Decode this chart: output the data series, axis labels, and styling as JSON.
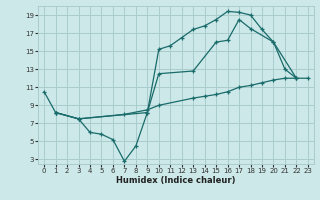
{
  "xlabel": "Humidex (Indice chaleur)",
  "bg_color": "#cce8e8",
  "grid_color": "#aacccc",
  "line_color": "#1a6b6b",
  "xlim": [
    -0.5,
    23.5
  ],
  "ylim": [
    2.5,
    20.0
  ],
  "xticks": [
    0,
    1,
    2,
    3,
    4,
    5,
    6,
    7,
    8,
    9,
    10,
    11,
    12,
    13,
    14,
    15,
    16,
    17,
    18,
    19,
    20,
    21,
    22,
    23
  ],
  "yticks": [
    3,
    5,
    7,
    9,
    11,
    13,
    15,
    17,
    19
  ],
  "line1_x": [
    0,
    1,
    3,
    4,
    5,
    6,
    7,
    8,
    9,
    10,
    11,
    12,
    13,
    14,
    15,
    16,
    17,
    18,
    19,
    20,
    21,
    22
  ],
  "line1_y": [
    10.5,
    8.2,
    7.5,
    6.0,
    5.8,
    5.2,
    2.8,
    4.5,
    8.2,
    15.2,
    15.6,
    16.5,
    17.4,
    17.8,
    18.5,
    19.4,
    19.3,
    19.0,
    17.4,
    16.0,
    13.0,
    12.0
  ],
  "line2_x": [
    1,
    3,
    9,
    10,
    13,
    15,
    16,
    17,
    18,
    20,
    22
  ],
  "line2_y": [
    8.2,
    7.5,
    8.2,
    12.5,
    12.8,
    16.0,
    16.2,
    18.5,
    17.5,
    16.0,
    12.0
  ],
  "line3_x": [
    1,
    3,
    7,
    9,
    10,
    13,
    14,
    15,
    16,
    17,
    18,
    19,
    20,
    21,
    22,
    23
  ],
  "line3_y": [
    8.2,
    7.5,
    8.0,
    8.5,
    9.0,
    9.8,
    10.0,
    10.2,
    10.5,
    11.0,
    11.2,
    11.5,
    11.8,
    12.0,
    12.0,
    12.0
  ]
}
